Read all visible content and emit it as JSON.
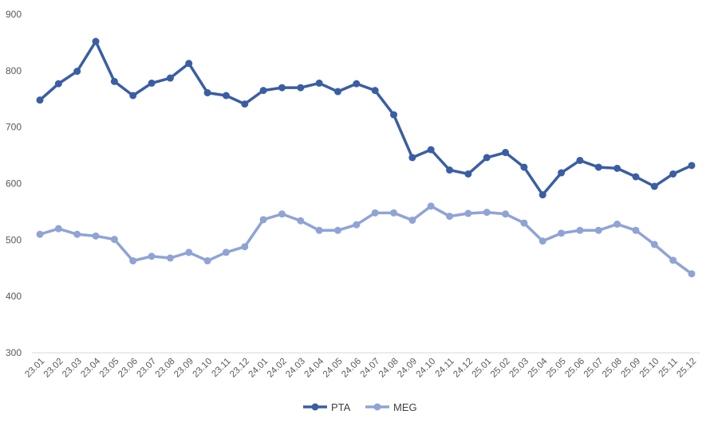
{
  "chart_data": {
    "type": "line",
    "title": "",
    "xlabel": "",
    "ylabel": "",
    "ylim": [
      300,
      900
    ],
    "yticks": [
      300,
      400,
      500,
      600,
      700,
      800,
      900
    ],
    "grid": false,
    "legend": "bottom-center",
    "categories": [
      "23.01",
      "23.02",
      "23.03",
      "23.04",
      "23.05",
      "23.06",
      "23.07",
      "23.08",
      "23.09",
      "23.10",
      "23.11",
      "23.12",
      "24.01",
      "24.02",
      "24.03",
      "24.04",
      "24.05",
      "24.06",
      "24.07",
      "24.08",
      "24.09",
      "24.10",
      "24.11",
      "24.12",
      "25.01",
      "25.02",
      "25.03",
      "25.04",
      "25.05",
      "25.06",
      "25.07",
      "25.08",
      "25.09",
      "25.10",
      "25.11",
      "25.12"
    ],
    "series": [
      {
        "name": "PTA",
        "color": "#3a5ea3",
        "values": [
          748,
          777,
          799,
          852,
          781,
          756,
          778,
          787,
          813,
          761,
          756,
          741,
          765,
          770,
          770,
          778,
          763,
          777,
          765,
          722,
          646,
          660,
          624,
          617,
          646,
          655,
          629,
          580,
          619,
          641,
          629,
          627,
          612,
          595,
          617,
          632
        ]
      },
      {
        "name": "MEG",
        "color": "#8fa3d6",
        "values": [
          510,
          520,
          510,
          507,
          501,
          463,
          471,
          468,
          478,
          463,
          478,
          488,
          536,
          546,
          534,
          517,
          517,
          527,
          548,
          548,
          535,
          560,
          542,
          547,
          549,
          546,
          530,
          498,
          512,
          517,
          517,
          528,
          517,
          492,
          464,
          440
        ]
      }
    ]
  }
}
